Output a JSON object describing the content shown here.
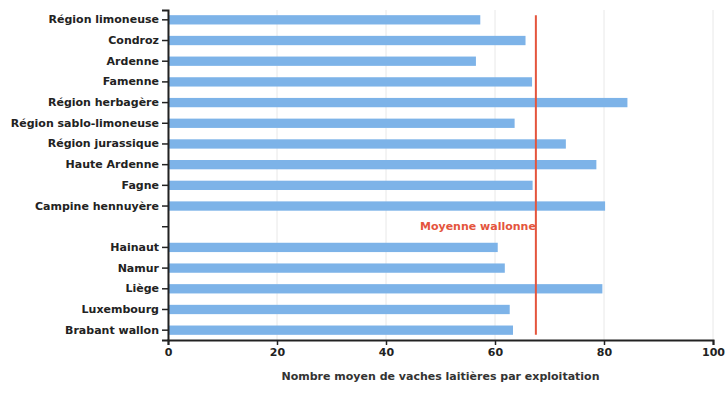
{
  "chart_data": {
    "type": "bar",
    "orientation": "horizontal",
    "categories": [
      "Région limoneuse",
      "Condroz",
      "Ardenne",
      "Famenne",
      "Région herbagère",
      "Région sablo-limoneuse",
      "Région jurassique",
      "Haute Ardenne",
      "Fagne",
      "Campine hennuyère",
      null,
      "Hainaut",
      "Namur",
      "Liège",
      "Luxembourg",
      "Brabant wallon"
    ],
    "values": [
      57.3,
      65.6,
      56.5,
      66.8,
      84.3,
      63.6,
      73.0,
      78.6,
      66.9,
      80.2,
      null,
      60.5,
      61.8,
      79.7,
      62.7,
      63.3
    ],
    "color": "#7db3e8",
    "x_label": "Nombre moyen de vaches laitières par exploitation",
    "xlim": [
      0,
      100
    ],
    "xticks": [
      0,
      20,
      40,
      60,
      80,
      100
    ],
    "grid": true,
    "annotations": [
      {
        "text": "Moyenne wallonne",
        "value": 67.5,
        "color": "#e4553d"
      }
    ]
  }
}
